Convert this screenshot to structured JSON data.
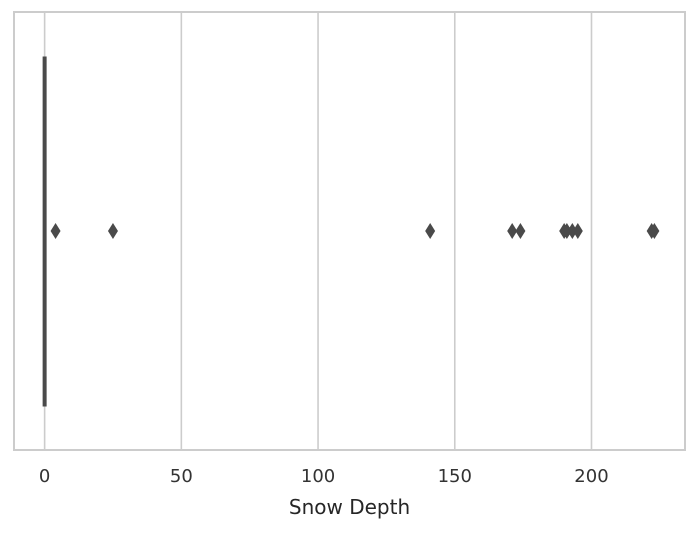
{
  "chart_data": {
    "type": "box",
    "orientation": "horizontal",
    "xlabel": "Snow Depth",
    "ylabel": "",
    "xlim": [
      -11.2,
      234.2
    ],
    "x_ticks": [
      0,
      50,
      100,
      150,
      200
    ],
    "x_tick_labels": [
      "0",
      "50",
      "100",
      "150",
      "200"
    ],
    "grid": "vertical",
    "box": {
      "min": 0,
      "q1": 0,
      "median": 0,
      "q3": 0,
      "max": 0
    },
    "outliers": [
      4,
      25,
      141,
      171,
      174,
      190,
      191,
      193,
      195,
      222,
      223
    ],
    "colors": {
      "box": "#4a4a4a",
      "outlier": "#4a4a4a",
      "grid": "#cccccc",
      "frame": "#cccccc"
    }
  }
}
